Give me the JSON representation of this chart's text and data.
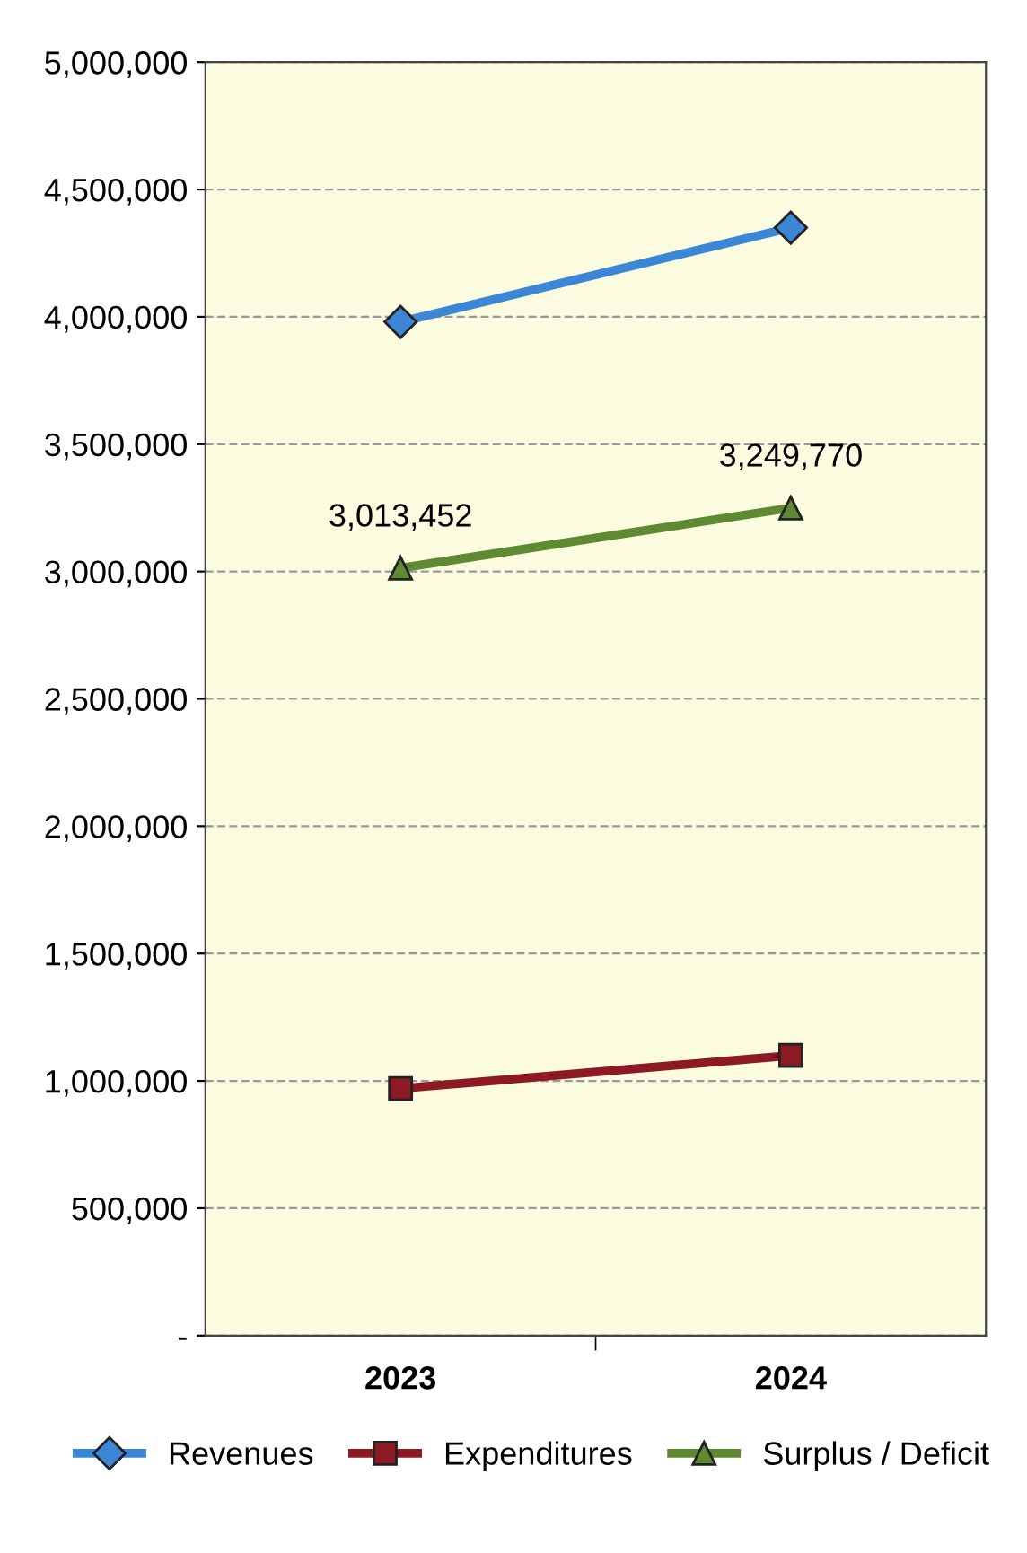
{
  "chart_data": {
    "type": "line",
    "categories": [
      "2023",
      "2024"
    ],
    "series": [
      {
        "name": "Revenues",
        "color": "#3b87d6",
        "values": [
          3980000,
          4350000
        ],
        "marker": "diamond"
      },
      {
        "name": "Expenditures",
        "color": "#8b1a22",
        "values": [
          970000,
          1100000
        ],
        "marker": "square"
      },
      {
        "name": "Surplus / Deficit",
        "color": "#5f8a32",
        "values": [
          3013452,
          3249770
        ],
        "marker": "triangle",
        "value_labels": [
          "3,013,452",
          "3,249,770"
        ]
      }
    ],
    "ylim": [
      0,
      5000000
    ],
    "yticks": [
      {
        "value": 0,
        "label": "-"
      },
      {
        "value": 500000,
        "label": "500,000"
      },
      {
        "value": 1000000,
        "label": "1,000,000"
      },
      {
        "value": 1500000,
        "label": "1,500,000"
      },
      {
        "value": 2000000,
        "label": "2,000,000"
      },
      {
        "value": 2500000,
        "label": "2,500,000"
      },
      {
        "value": 3000000,
        "label": "3,000,000"
      },
      {
        "value": 3500000,
        "label": "3,500,000"
      },
      {
        "value": 4000000,
        "label": "4,000,000"
      },
      {
        "value": 4500000,
        "label": "4,500,000"
      },
      {
        "value": 5000000,
        "label": "5,000,000"
      }
    ],
    "grid": "y",
    "legend": "bottom",
    "line_style": "solid"
  }
}
